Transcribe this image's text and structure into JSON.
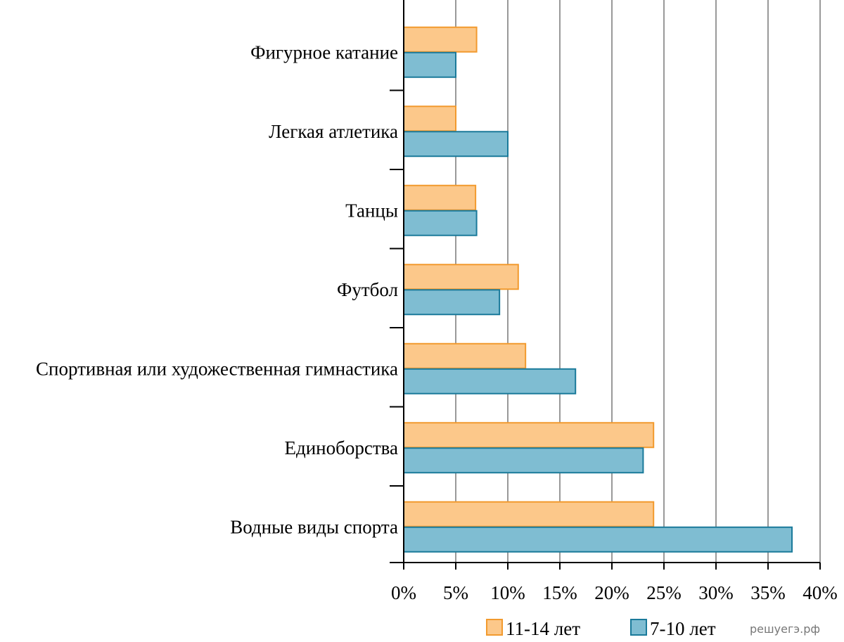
{
  "chart_data": {
    "type": "bar",
    "orientation": "horizontal",
    "categories": [
      "Фигурное катание",
      "Легкая атлетика",
      "Танцы",
      "Футбол",
      "Спортивная или художественная гимнастика",
      "Единоборства",
      "Водные виды спорта"
    ],
    "series": [
      {
        "name": "11-14 лет",
        "values": [
          7,
          5,
          6.9,
          11,
          11.7,
          24,
          24
        ],
        "color": "#FCC88A",
        "stroke": "#F29A2E"
      },
      {
        "name": "7-10 лет",
        "values": [
          5,
          10,
          7,
          9.2,
          16.5,
          23,
          37.3
        ],
        "color": "#7FBDD2",
        "stroke": "#1A7A9A"
      }
    ],
    "x_ticks": [
      "0%",
      "5%",
      "10%",
      "15%",
      "20%",
      "25%",
      "30%",
      "35%",
      "40%"
    ],
    "xlim": [
      0,
      40
    ],
    "grid": "vertical",
    "legend_position": "bottom"
  },
  "watermark": "решуегэ.рф"
}
